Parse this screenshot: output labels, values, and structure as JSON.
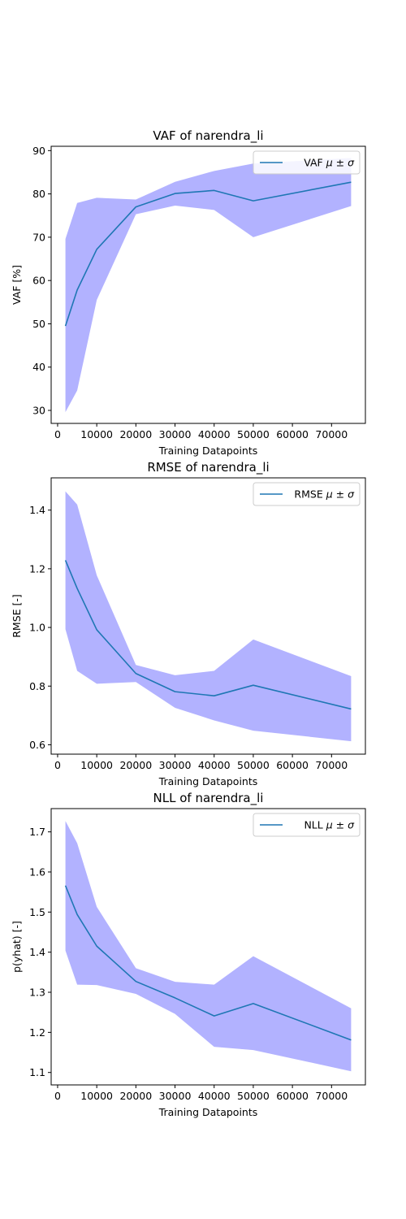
{
  "colors": {
    "line": "#1f77b4",
    "band": "#b2b2ff",
    "axes": "#000000",
    "legend_border": "#cccccc"
  },
  "chart_data": [
    {
      "type": "line",
      "title": "VAF of narendra_li",
      "xlabel": "Training Datapoints",
      "ylabel": "VAF [%]",
      "xlim": [
        -1650,
        78650
      ],
      "ylim": [
        27.0,
        91.0
      ],
      "xticks": [
        0,
        10000,
        20000,
        30000,
        40000,
        50000,
        60000,
        70000
      ],
      "yticks": [
        30,
        40,
        50,
        60,
        70,
        80,
        90
      ],
      "grid": false,
      "legend": {
        "position": "top-right",
        "label": "VAF μ ± σ",
        "prefix": "VAF",
        "math": "μ ± σ"
      },
      "x": [
        2000,
        5000,
        10000,
        20000,
        30000,
        40000,
        50000,
        75000
      ],
      "mean": [
        49.5,
        57.8,
        67.2,
        77.0,
        80.1,
        80.8,
        78.4,
        82.7
      ],
      "upper": [
        69.6,
        77.9,
        79.1,
        78.7,
        82.8,
        85.3,
        87.0,
        88.3
      ],
      "lower": [
        29.6,
        34.6,
        55.5,
        75.3,
        77.3,
        76.3,
        70.0,
        77.2
      ]
    },
    {
      "type": "line",
      "title": "RMSE of narendra_li",
      "xlabel": "Training Datapoints",
      "ylabel": "RMSE [-]",
      "xlim": [
        -1650,
        78650
      ],
      "ylim": [
        0.568,
        1.51
      ],
      "xticks": [
        0,
        10000,
        20000,
        30000,
        40000,
        50000,
        60000,
        70000
      ],
      "yticks": [
        0.6,
        0.8,
        1.0,
        1.2,
        1.4
      ],
      "ytick_labels": [
        "0.6",
        "0.8",
        "1.0",
        "1.2",
        "1.4"
      ],
      "grid": false,
      "legend": {
        "position": "top-right",
        "label": "RMSE μ ± σ",
        "prefix": "RMSE",
        "math": "μ ± σ"
      },
      "x": [
        2000,
        5000,
        10000,
        20000,
        30000,
        40000,
        50000,
        75000
      ],
      "mean": [
        1.229,
        1.133,
        0.992,
        0.843,
        0.781,
        0.767,
        0.803,
        0.722
      ],
      "upper": [
        1.464,
        1.419,
        1.178,
        0.872,
        0.837,
        0.852,
        0.959,
        0.834
      ],
      "lower": [
        0.994,
        0.852,
        0.808,
        0.814,
        0.726,
        0.683,
        0.648,
        0.612
      ]
    },
    {
      "type": "line",
      "title": "NLL of narendra_li",
      "xlabel": "Training Datapoints",
      "ylabel": "p(yhat) [-]",
      "xlim": [
        -1650,
        78650
      ],
      "ylim": [
        1.069,
        1.758
      ],
      "xticks": [
        0,
        10000,
        20000,
        30000,
        40000,
        50000,
        60000,
        70000
      ],
      "yticks": [
        1.1,
        1.2,
        1.3,
        1.4,
        1.5,
        1.6,
        1.7
      ],
      "ytick_labels": [
        "1.1",
        "1.2",
        "1.3",
        "1.4",
        "1.5",
        "1.6",
        "1.7"
      ],
      "grid": false,
      "legend": {
        "position": "top-right",
        "label": "NLL μ ± σ",
        "prefix": "NLL",
        "math": "μ ± σ"
      },
      "x": [
        2000,
        5000,
        10000,
        20000,
        30000,
        40000,
        50000,
        75000
      ],
      "mean": [
        1.566,
        1.494,
        1.415,
        1.327,
        1.286,
        1.241,
        1.272,
        1.181
      ],
      "upper": [
        1.727,
        1.672,
        1.513,
        1.36,
        1.326,
        1.319,
        1.39,
        1.26
      ],
      "lower": [
        1.404,
        1.319,
        1.318,
        1.296,
        1.246,
        1.164,
        1.156,
        1.103
      ]
    }
  ]
}
